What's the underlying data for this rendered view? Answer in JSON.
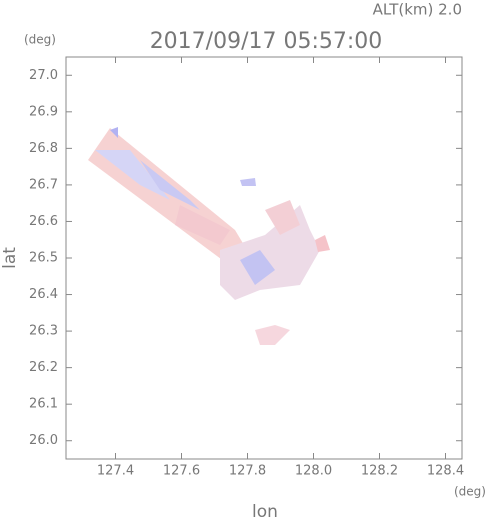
{
  "chart_data": {
    "type": "radar-map",
    "header": "ALT(km)  2.0",
    "title": "2017/09/17 05:57:00",
    "x_label": "lon",
    "y_label": "lat",
    "x_unit": "(deg)",
    "y_unit": "(deg)",
    "xlim": [
      127.25,
      128.45
    ],
    "ylim": [
      25.95,
      27.05
    ],
    "xticks": [
      127.4,
      127.6,
      127.8,
      {
        "value": 128.0,
        "label": "128.0"
      },
      128.2,
      128.4
    ],
    "yticks": [
      {
        "value": 26.0,
        "label": "26.0"
      },
      26.1,
      26.2,
      26.3,
      26.4,
      26.5,
      26.6,
      26.7,
      26.8,
      26.9,
      {
        "value": 27.0,
        "label": "27.0"
      }
    ],
    "frame_color": "#888888"
  }
}
